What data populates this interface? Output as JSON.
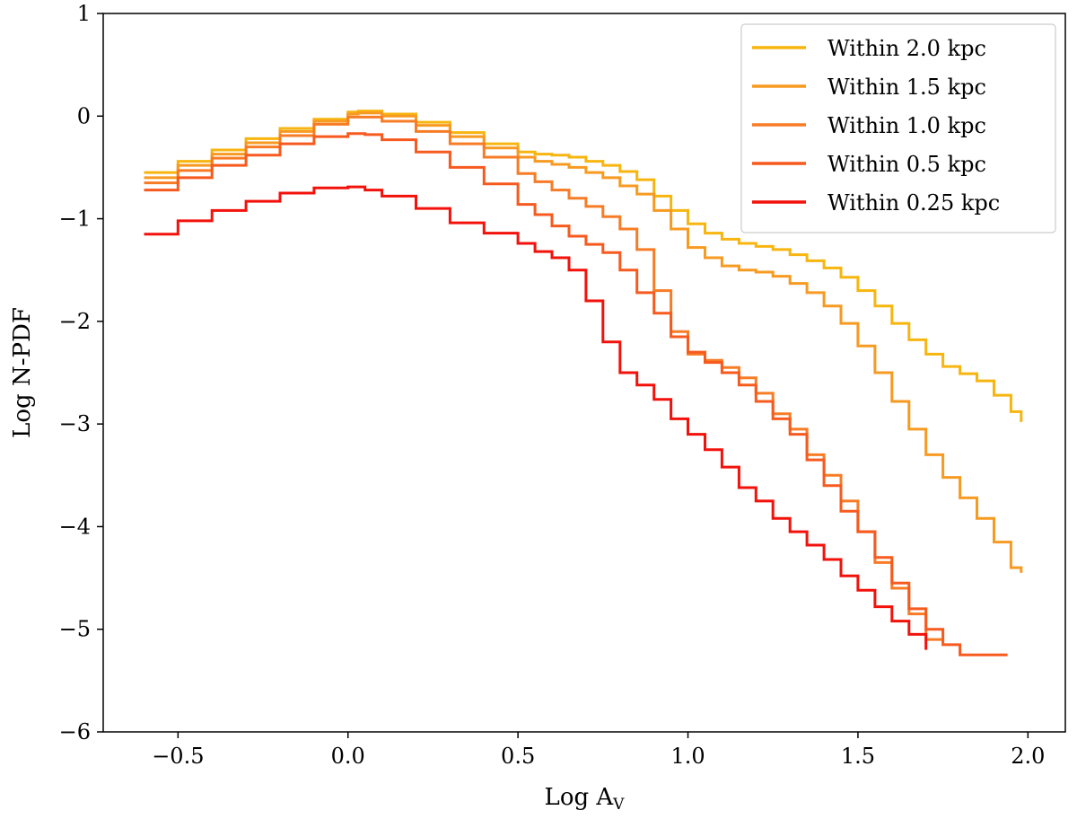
{
  "chart_data": {
    "type": "line",
    "step": true,
    "title": "",
    "xlabel_main": "Log A",
    "xlabel_sub": "V",
    "ylabel": "Log N-PDF",
    "xlim": [
      -0.72,
      2.11
    ],
    "ylim": [
      -6,
      1
    ],
    "xticks": [
      -0.5,
      0.0,
      0.5,
      1.0,
      1.5,
      2.0
    ],
    "xtick_labels": [
      "−0.5",
      "0.0",
      "0.5",
      "1.0",
      "1.5",
      "2.0"
    ],
    "yticks": [
      -6,
      -5,
      -4,
      -3,
      -2,
      -1,
      0,
      1
    ],
    "ytick_labels": [
      "−6",
      "−5",
      "−4",
      "−3",
      "−2",
      "−1",
      "0",
      "1"
    ],
    "grid": false,
    "legend_position": "upper-right",
    "series": [
      {
        "name": "Within 2.0 kpc",
        "color": "#f7b50f",
        "x": [
          -0.6,
          -0.5,
          -0.4,
          -0.3,
          -0.2,
          -0.1,
          0.0,
          0.03,
          0.1,
          0.2,
          0.3,
          0.4,
          0.5,
          0.55,
          0.6,
          0.65,
          0.7,
          0.75,
          0.8,
          0.85,
          0.9,
          0.95,
          1.0,
          1.05,
          1.1,
          1.15,
          1.2,
          1.25,
          1.3,
          1.35,
          1.4,
          1.45,
          1.5,
          1.55,
          1.6,
          1.65,
          1.7,
          1.75,
          1.8,
          1.85,
          1.9,
          1.95,
          1.98
        ],
        "y": [
          -0.55,
          -0.44,
          -0.33,
          -0.22,
          -0.12,
          -0.03,
          0.04,
          0.05,
          0.02,
          -0.06,
          -0.16,
          -0.27,
          -0.35,
          -0.37,
          -0.38,
          -0.4,
          -0.44,
          -0.48,
          -0.54,
          -0.62,
          -0.78,
          -0.92,
          -1.05,
          -1.14,
          -1.2,
          -1.24,
          -1.27,
          -1.3,
          -1.35,
          -1.41,
          -1.48,
          -1.57,
          -1.7,
          -1.85,
          -2.02,
          -2.18,
          -2.32,
          -2.44,
          -2.51,
          -2.58,
          -2.72,
          -2.88,
          -2.98
        ]
      },
      {
        "name": "Within 1.5 kpc",
        "color": "#f79a21",
        "x": [
          -0.6,
          -0.5,
          -0.4,
          -0.3,
          -0.2,
          -0.1,
          0.0,
          0.03,
          0.1,
          0.2,
          0.3,
          0.4,
          0.5,
          0.55,
          0.6,
          0.65,
          0.7,
          0.75,
          0.8,
          0.85,
          0.9,
          0.95,
          1.0,
          1.05,
          1.1,
          1.15,
          1.2,
          1.25,
          1.3,
          1.35,
          1.4,
          1.45,
          1.5,
          1.55,
          1.6,
          1.65,
          1.7,
          1.75,
          1.8,
          1.85,
          1.9,
          1.95,
          1.98
        ],
        "y": [
          -0.6,
          -0.48,
          -0.37,
          -0.26,
          -0.15,
          -0.05,
          0.02,
          0.03,
          0.0,
          -0.09,
          -0.2,
          -0.31,
          -0.4,
          -0.44,
          -0.47,
          -0.5,
          -0.55,
          -0.6,
          -0.68,
          -0.76,
          -0.92,
          -1.1,
          -1.28,
          -1.38,
          -1.46,
          -1.5,
          -1.52,
          -1.56,
          -1.63,
          -1.72,
          -1.85,
          -2.02,
          -2.24,
          -2.5,
          -2.78,
          -3.05,
          -3.3,
          -3.52,
          -3.72,
          -3.92,
          -4.15,
          -4.4,
          -4.45
        ]
      },
      {
        "name": "Within 1.0 kpc",
        "color": "#f77c25",
        "x": [
          -0.6,
          -0.5,
          -0.4,
          -0.3,
          -0.2,
          -0.1,
          0.0,
          0.05,
          0.1,
          0.2,
          0.3,
          0.4,
          0.5,
          0.55,
          0.6,
          0.65,
          0.7,
          0.75,
          0.8,
          0.85,
          0.9,
          0.95,
          1.0,
          1.05,
          1.1,
          1.15,
          1.2,
          1.25,
          1.3,
          1.35,
          1.4,
          1.45,
          1.5,
          1.55,
          1.6,
          1.65,
          1.7,
          1.75
        ],
        "y": [
          -0.65,
          -0.53,
          -0.41,
          -0.3,
          -0.19,
          -0.08,
          -0.01,
          -0.01,
          -0.05,
          -0.15,
          -0.27,
          -0.4,
          -0.56,
          -0.64,
          -0.72,
          -0.8,
          -0.88,
          -0.98,
          -1.1,
          -1.3,
          -1.7,
          -2.1,
          -2.32,
          -2.38,
          -2.45,
          -2.55,
          -2.7,
          -2.9,
          -3.05,
          -3.3,
          -3.5,
          -3.75,
          -4.05,
          -4.35,
          -4.6,
          -4.85,
          -5.1,
          -5.1
        ]
      },
      {
        "name": "Within 0.5 kpc",
        "color": "#f75a1e",
        "x": [
          -0.6,
          -0.5,
          -0.4,
          -0.3,
          -0.2,
          -0.1,
          0.0,
          0.05,
          0.1,
          0.2,
          0.3,
          0.4,
          0.5,
          0.55,
          0.6,
          0.65,
          0.7,
          0.75,
          0.8,
          0.85,
          0.9,
          0.95,
          1.0,
          1.05,
          1.1,
          1.15,
          1.2,
          1.25,
          1.3,
          1.35,
          1.4,
          1.45,
          1.5,
          1.55,
          1.6,
          1.65,
          1.7,
          1.75,
          1.8,
          1.85,
          1.9,
          1.94
        ],
        "y": [
          -0.72,
          -0.6,
          -0.48,
          -0.38,
          -0.27,
          -0.2,
          -0.17,
          -0.18,
          -0.23,
          -0.35,
          -0.5,
          -0.66,
          -0.86,
          -0.96,
          -1.07,
          -1.17,
          -1.25,
          -1.33,
          -1.5,
          -1.72,
          -1.92,
          -2.15,
          -2.3,
          -2.4,
          -2.5,
          -2.62,
          -2.78,
          -2.95,
          -3.1,
          -3.35,
          -3.6,
          -3.85,
          -4.05,
          -4.3,
          -4.55,
          -4.8,
          -5.0,
          -5.15,
          -5.25,
          -5.25,
          -5.25,
          -5.25
        ]
      },
      {
        "name": "Within 0.25 kpc",
        "color": "#f2120b",
        "x": [
          -0.6,
          -0.5,
          -0.4,
          -0.3,
          -0.2,
          -0.1,
          0.0,
          0.05,
          0.1,
          0.2,
          0.3,
          0.4,
          0.5,
          0.55,
          0.6,
          0.65,
          0.7,
          0.75,
          0.8,
          0.85,
          0.9,
          0.95,
          1.0,
          1.05,
          1.1,
          1.15,
          1.2,
          1.25,
          1.3,
          1.35,
          1.4,
          1.45,
          1.5,
          1.55,
          1.6,
          1.65,
          1.7
        ],
        "y": [
          -1.15,
          -1.02,
          -0.92,
          -0.83,
          -0.75,
          -0.7,
          -0.69,
          -0.72,
          -0.78,
          -0.9,
          -1.04,
          -1.14,
          -1.24,
          -1.32,
          -1.38,
          -1.5,
          -1.8,
          -2.2,
          -2.5,
          -2.62,
          -2.76,
          -2.95,
          -3.1,
          -3.25,
          -3.42,
          -3.62,
          -3.75,
          -3.92,
          -4.05,
          -4.18,
          -4.32,
          -4.48,
          -4.62,
          -4.78,
          -4.92,
          -5.05,
          -5.2
        ]
      }
    ]
  }
}
